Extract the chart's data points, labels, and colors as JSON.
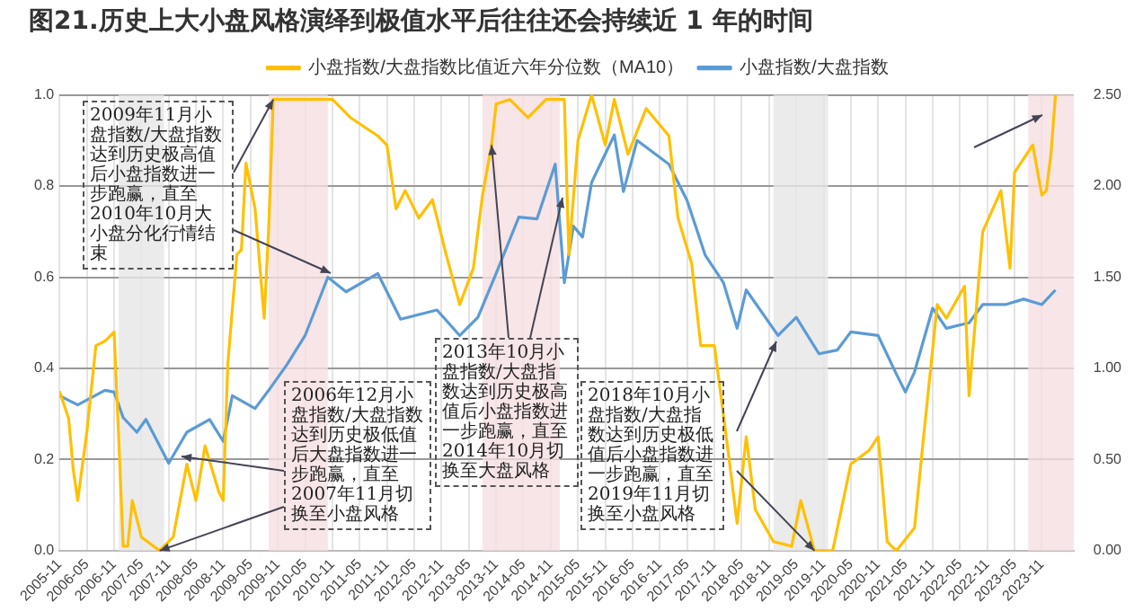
{
  "chart_data": {
    "type": "line",
    "title": "图21.历史上大小盘风格演绎到极值水平后往往还会持续近 1 年的时间",
    "legend": "top",
    "grid": true,
    "xlim": [
      "2005-11",
      "2024-06"
    ],
    "xticks": [
      "2005-11",
      "2006-05",
      "2006-11",
      "2007-05",
      "2007-11",
      "2008-05",
      "2008-11",
      "2009-05",
      "2009-11",
      "2010-05",
      "2010-11",
      "2011-05",
      "2011-11",
      "2012-05",
      "2012-11",
      "2013-05",
      "2013-11",
      "2014-05",
      "2014-11",
      "2015-05",
      "2015-11",
      "2016-05",
      "2016-11",
      "2017-05",
      "2017-11",
      "2018-05",
      "2018-11",
      "2019-05",
      "2019-11",
      "2020-05",
      "2020-11",
      "2021-05",
      "2021-11",
      "2022-05",
      "2022-11",
      "2023-05",
      "2023-11"
    ],
    "ylim": [
      0,
      1
    ],
    "yticks": [
      {
        "value": 0,
        "label": "0.0"
      },
      {
        "value": 0.2,
        "label": "0.2"
      },
      {
        "value": 0.4,
        "label": "0.4"
      },
      {
        "value": 0.6,
        "label": "0.6"
      },
      {
        "value": 0.8,
        "label": "0.8"
      },
      {
        "value": 1,
        "label": "1.0"
      }
    ],
    "y2lim": [
      0,
      2.5
    ],
    "y2ticks": [
      {
        "value": 0,
        "label": "0.00"
      },
      {
        "value": 0.5,
        "label": "0.50"
      },
      {
        "value": 1,
        "label": "1.00"
      },
      {
        "value": 1.5,
        "label": "1.50"
      },
      {
        "value": 2,
        "label": "2.00"
      },
      {
        "value": 2.5,
        "label": "2.50"
      }
    ],
    "series": [
      {
        "name": "小盘指数/大盘指数比值近六年分位数（MA10）",
        "color": "#ffc000",
        "x": [
          "2005-11",
          "2006-01",
          "2006-02",
          "2006-03",
          "2006-05",
          "2006-07",
          "2006-09",
          "2006-11",
          "2006-12",
          "2007-01",
          "2007-02",
          "2007-03",
          "2007-05",
          "2007-09",
          "2007-12",
          "2008-03",
          "2008-05",
          "2008-07",
          "2008-10",
          "2008-11",
          "2008-12",
          "2009-02",
          "2009-03",
          "2009-04",
          "2009-06",
          "2009-08",
          "2009-09",
          "2009-10",
          "2010-01",
          "2010-11",
          "2011-03",
          "2011-09",
          "2011-11",
          "2012-01",
          "2012-03",
          "2012-06",
          "2012-09",
          "2012-12",
          "2013-03",
          "2013-06",
          "2013-08",
          "2013-10",
          "2013-11",
          "2014-02",
          "2014-06",
          "2014-10",
          "2015-01",
          "2015-02",
          "2015-03",
          "2015-05",
          "2015-08",
          "2015-11",
          "2016-01",
          "2016-04",
          "2016-08",
          "2017-01",
          "2017-03",
          "2017-06",
          "2017-08",
          "2017-11",
          "2018-02",
          "2018-04",
          "2018-06",
          "2018-08",
          "2018-12",
          "2019-04",
          "2019-06",
          "2019-09",
          "2020-01",
          "2020-05",
          "2020-09",
          "2020-11",
          "2021-01",
          "2021-03",
          "2021-07",
          "2021-09",
          "2021-12",
          "2022-02",
          "2022-06",
          "2022-07",
          "2022-10",
          "2023-02",
          "2023-04",
          "2023-05",
          "2023-09",
          "2023-11",
          "2023-12",
          "2024-01",
          "2024-02"
        ],
        "values": [
          0.35,
          0.29,
          0.18,
          0.11,
          0.26,
          0.45,
          0.46,
          0.48,
          0.25,
          0.01,
          0.01,
          0.11,
          0.03,
          0,
          0.03,
          0.19,
          0.11,
          0.23,
          0.13,
          0.11,
          0.41,
          0.65,
          0.66,
          0.85,
          0.75,
          0.51,
          0.71,
          0.99,
          0.99,
          0.99,
          0.95,
          0.91,
          0.89,
          0.75,
          0.79,
          0.73,
          0.77,
          0.65,
          0.54,
          0.62,
          0.78,
          0.89,
          0.98,
          0.99,
          0.95,
          0.99,
          0.99,
          0.99,
          0.65,
          0.9,
          1,
          0.89,
          0.99,
          0.87,
          0.97,
          0.91,
          0.73,
          0.63,
          0.45,
          0.45,
          0.22,
          0.06,
          0.25,
          0.09,
          0.02,
          0.01,
          0.11,
          0,
          0,
          0.19,
          0.22,
          0.25,
          0.02,
          0,
          0.05,
          0.25,
          0.54,
          0.51,
          0.58,
          0.34,
          0.7,
          0.79,
          0.62,
          0.83,
          0.89,
          0.78,
          0.79,
          0.87,
          1
        ]
      },
      {
        "name": "小盘指数/大盘指数",
        "color": "#5b9bd5",
        "axis": "y2",
        "x": [
          "2005-11",
          "2006-03",
          "2006-09",
          "2006-11",
          "2007-01",
          "2007-04",
          "2007-06",
          "2007-11",
          "2008-03",
          "2008-08",
          "2008-11",
          "2009-01",
          "2009-06",
          "2009-09",
          "2010-01",
          "2010-05",
          "2010-10",
          "2011-02",
          "2011-09",
          "2012-02",
          "2012-10",
          "2013-03",
          "2013-07",
          "2013-11",
          "2014-04",
          "2014-08",
          "2014-12",
          "2015-02",
          "2015-04",
          "2015-06",
          "2015-08",
          "2016-01",
          "2016-03",
          "2016-06",
          "2017-01",
          "2017-05",
          "2017-09",
          "2018-01",
          "2018-04",
          "2018-06",
          "2019-01",
          "2019-05",
          "2019-10",
          "2020-02",
          "2020-05",
          "2020-11",
          "2021-03",
          "2021-05",
          "2021-07",
          "2021-11",
          "2022-02",
          "2022-07",
          "2022-10",
          "2023-03",
          "2023-07",
          "2023-11",
          "2024-02"
        ],
        "values": [
          0.85,
          0.8,
          0.88,
          0.87,
          0.73,
          0.65,
          0.72,
          0.48,
          0.65,
          0.72,
          0.6,
          0.85,
          0.78,
          0.88,
          1.02,
          1.18,
          1.5,
          1.42,
          1.52,
          1.27,
          1.32,
          1.18,
          1.28,
          1.52,
          1.83,
          1.82,
          2.12,
          1.47,
          1.78,
          1.72,
          2.02,
          2.28,
          1.97,
          2.25,
          2.12,
          1.92,
          1.62,
          1.47,
          1.22,
          1.43,
          1.18,
          1.28,
          1.08,
          1.1,
          1.2,
          1.18,
          0.97,
          0.87,
          0.98,
          1.33,
          1.22,
          1.25,
          1.35,
          1.35,
          1.38,
          1.35,
          1.43
        ]
      }
    ],
    "bands": [
      {
        "axis": "x",
        "from": "2006-12",
        "to": "2007-10",
        "color": "#e6e6e6"
      },
      {
        "axis": "x",
        "from": "2009-09",
        "to": "2010-10",
        "color": "#f6dfe2"
      },
      {
        "axis": "x",
        "from": "2013-08",
        "to": "2015-01",
        "color": "#f6dfe2"
      },
      {
        "axis": "x",
        "from": "2018-12",
        "to": "2019-12",
        "color": "#e6e6e6"
      },
      {
        "axis": "x",
        "from": "2023-08",
        "to": "2024-06",
        "color": "#f6dfe2"
      }
    ],
    "annotations": [
      {
        "text": "2009年11月小盘指数/大盘指数达到历史极高值后小盘指数进一步跑赢，直至2010年10月大小盘分化行情结束",
        "x": "2009-10",
        "y": 0.99
      },
      {
        "text": "2006年12月小盘指数/大盘指数达到历史极低值后大盘指数进一步跑赢，直至2007年11月切换至小盘风格",
        "x": "2007-09",
        "y": 0
      },
      {
        "text": "2013年10月小盘指数/大盘指数达到历史极高值后小盘指数进一步跑赢，直至2014年10月切换至大盘风格",
        "x": "2013-10",
        "y": 0.89
      },
      {
        "text": "2018年10月小盘指数/大盘指数达到历史极低值后小盘指数进一步跑赢，直至2019年11月切换至小盘风格",
        "x": "2019-09",
        "y": 0
      }
    ]
  }
}
